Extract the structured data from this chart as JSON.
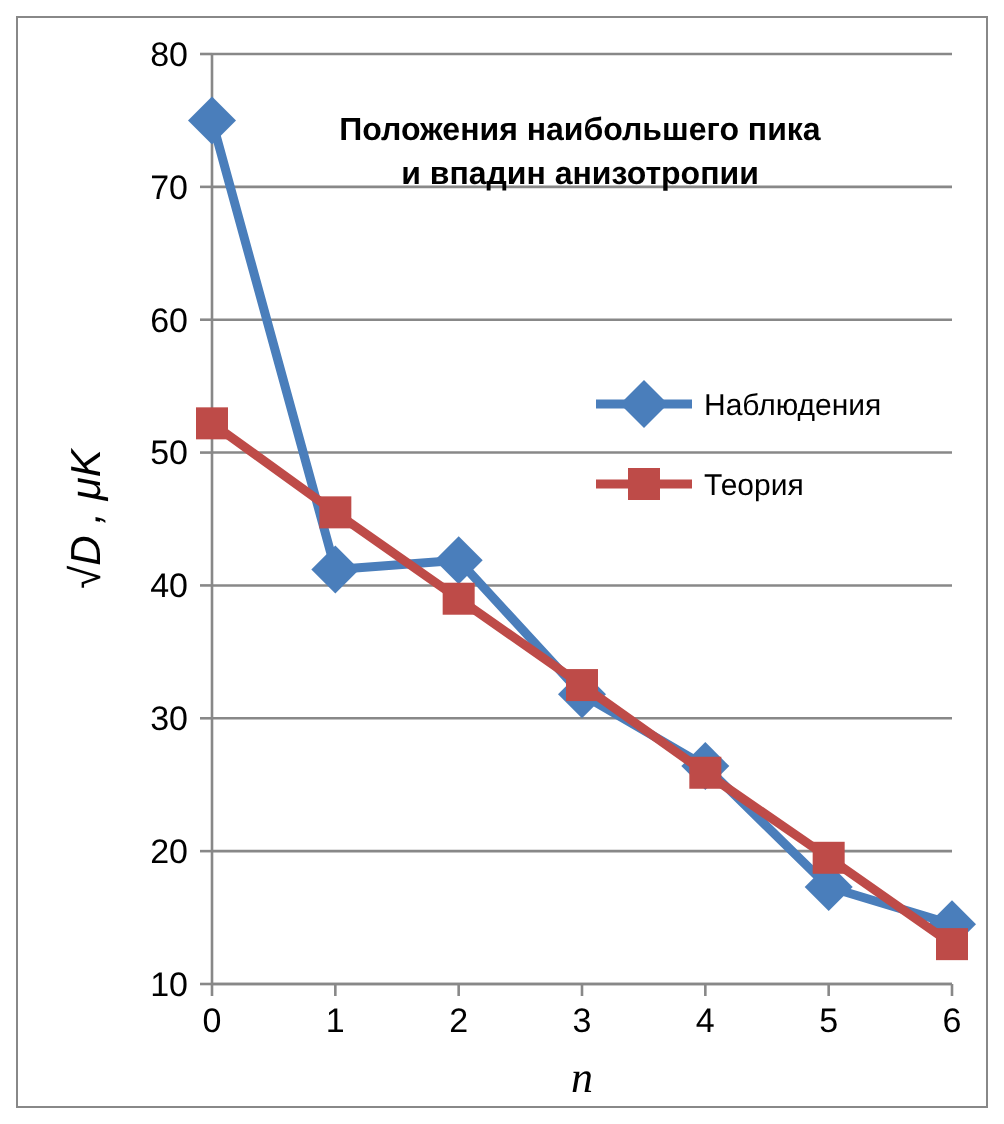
{
  "chart_data": {
    "type": "line",
    "title": "Положения наибольшего пика\nи впадин анизотропии",
    "xlabel": "n",
    "ylabel": "√D , μK",
    "x": [
      0,
      1,
      2,
      3,
      4,
      5,
      6
    ],
    "xlim": [
      0,
      6
    ],
    "xticks": [
      0,
      1,
      2,
      3,
      4,
      5,
      6
    ],
    "ylim": [
      10,
      80
    ],
    "yticks": [
      10,
      20,
      30,
      40,
      50,
      60,
      70,
      80
    ],
    "series": [
      {
        "name": "Наблюдения",
        "color": "#4a7ebb",
        "marker": "diamond",
        "values": [
          75,
          41.2,
          41.9,
          31.8,
          26.4,
          17.3,
          14.5
        ]
      },
      {
        "name": "Теория",
        "color": "#be4b48",
        "marker": "square",
        "values": [
          52.2,
          45.5,
          39,
          32.5,
          25.9,
          19.5,
          13
        ]
      }
    ],
    "grid": "y",
    "legend": "right"
  }
}
